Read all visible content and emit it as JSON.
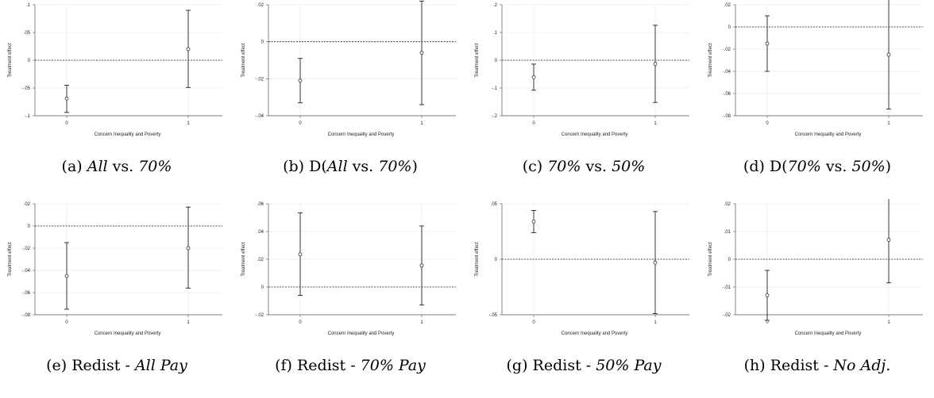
{
  "panels": [
    {
      "caption_parts": [
        {
          "text": "(a) "
        },
        {
          "text": "All",
          "italic": true
        },
        {
          "text": " vs. "
        },
        {
          "text": "70%",
          "italic": true
        }
      ],
      "chart_data": {
        "type": "scatter",
        "ylabel": "Treatment effect",
        "xlabel": "Concern Inequality and Poverty",
        "ylim": [
          -0.1,
          0.1
        ],
        "yticks": [
          -0.1,
          -0.05,
          0,
          0.05,
          0.1
        ],
        "ytick_labels": [
          "-.1",
          "-.05",
          "0",
          ".05",
          ".1"
        ],
        "xticks": [
          0,
          1
        ],
        "xtick_labels": [
          "0",
          "1"
        ],
        "points": [
          {
            "x": 0,
            "y": -0.069,
            "lo": -0.094,
            "hi": -0.045
          },
          {
            "x": 1,
            "y": 0.02,
            "lo": -0.049,
            "hi": 0.09
          }
        ]
      }
    },
    {
      "caption_parts": [
        {
          "text": "(b) D("
        },
        {
          "text": "All",
          "italic": true
        },
        {
          "text": " vs. "
        },
        {
          "text": "70%",
          "italic": true
        },
        {
          "text": ")"
        }
      ],
      "chart_data": {
        "type": "scatter",
        "ylabel": "Treatment effect",
        "xlabel": "Concern Inequality and Poverty",
        "ylim": [
          -0.04,
          0.02
        ],
        "yticks": [
          -0.04,
          -0.02,
          0,
          0.02
        ],
        "ytick_labels": [
          "-.04",
          "-.02",
          "0",
          ".02"
        ],
        "xticks": [
          0,
          1
        ],
        "xtick_labels": [
          "0",
          "1"
        ],
        "points": [
          {
            "x": 0,
            "y": -0.021,
            "lo": -0.033,
            "hi": -0.009
          },
          {
            "x": 1,
            "y": -0.006,
            "lo": -0.034,
            "hi": 0.022
          }
        ]
      }
    },
    {
      "caption_parts": [
        {
          "text": "(c) "
        },
        {
          "text": "70%",
          "italic": true
        },
        {
          "text": " vs. "
        },
        {
          "text": "50%",
          "italic": true
        }
      ],
      "chart_data": {
        "type": "scatter",
        "ylabel": "Treatment effect",
        "xlabel": "Concern Inequality and Poverty",
        "ylim": [
          -0.2,
          0.2
        ],
        "yticks": [
          -0.2,
          -0.1,
          0,
          0.1,
          0.2
        ],
        "ytick_labels": [
          "-.2",
          "-.1",
          "0",
          ".1",
          ".2"
        ],
        "xticks": [
          0,
          1
        ],
        "xtick_labels": [
          "0",
          "1"
        ],
        "points": [
          {
            "x": 0,
            "y": -0.061,
            "lo": -0.108,
            "hi": -0.014
          },
          {
            "x": 1,
            "y": -0.013,
            "lo": -0.152,
            "hi": 0.126
          }
        ]
      }
    },
    {
      "caption_parts": [
        {
          "text": "(d) D("
        },
        {
          "text": "70%",
          "italic": true
        },
        {
          "text": " vs. "
        },
        {
          "text": "50%",
          "italic": true
        },
        {
          "text": ")"
        }
      ],
      "chart_data": {
        "type": "scatter",
        "ylabel": "Treatment effect",
        "xlabel": "Concern Inequality and Poverty",
        "ylim": [
          -0.08,
          0.02
        ],
        "yticks": [
          -0.08,
          -0.06,
          -0.04,
          -0.02,
          0,
          0.02
        ],
        "ytick_labels": [
          "-.08",
          "-.06",
          "-.04",
          "-.02",
          "0",
          ".02"
        ],
        "xticks": [
          0,
          1
        ],
        "xtick_labels": [
          "0",
          "1"
        ],
        "points": [
          {
            "x": 0,
            "y": -0.015,
            "lo": -0.04,
            "hi": 0.01
          },
          {
            "x": 1,
            "y": -0.025,
            "lo": -0.074,
            "hi": 0.025
          }
        ]
      }
    },
    {
      "caption_parts": [
        {
          "text": "(e) Redist - "
        },
        {
          "text": "All Pay",
          "italic": true
        }
      ],
      "chart_data": {
        "type": "scatter",
        "ylabel": "Treatment effect",
        "xlabel": "Concern Inequality and Poverty",
        "ylim": [
          -0.08,
          0.02
        ],
        "yticks": [
          -0.08,
          -0.06,
          -0.04,
          -0.02,
          0,
          0.02
        ],
        "ytick_labels": [
          "-.08",
          "-.06",
          "-.04",
          "-.02",
          "0",
          ".02"
        ],
        "xticks": [
          0,
          1
        ],
        "xtick_labels": [
          "0",
          "1"
        ],
        "points": [
          {
            "x": 0,
            "y": -0.045,
            "lo": -0.075,
            "hi": -0.015
          },
          {
            "x": 1,
            "y": -0.02,
            "lo": -0.056,
            "hi": 0.017
          }
        ]
      }
    },
    {
      "caption_parts": [
        {
          "text": "(f) Redist - "
        },
        {
          "text": "70% Pay",
          "italic": true
        }
      ],
      "chart_data": {
        "type": "scatter",
        "ylabel": "Treatment effect",
        "xlabel": "Concern Inequality and Poverty",
        "ylim": [
          -0.02,
          0.06
        ],
        "yticks": [
          -0.02,
          0,
          0.02,
          0.04,
          0.06
        ],
        "ytick_labels": [
          "-.02",
          "0",
          ".02",
          ".04",
          ".06"
        ],
        "xticks": [
          0,
          1
        ],
        "xtick_labels": [
          "0",
          "1"
        ],
        "points": [
          {
            "x": 0,
            "y": 0.0235,
            "lo": -0.006,
            "hi": 0.0535
          },
          {
            "x": 1,
            "y": 0.0155,
            "lo": -0.013,
            "hi": 0.044
          }
        ]
      }
    },
    {
      "caption_parts": [
        {
          "text": "(g) Redist - "
        },
        {
          "text": "50% Pay",
          "italic": true
        }
      ],
      "chart_data": {
        "type": "scatter",
        "ylabel": "Treatment effect",
        "xlabel": "Concern Inequality and Poverty",
        "ylim": [
          -0.05,
          0.05
        ],
        "yticks": [
          -0.05,
          0,
          0.05
        ],
        "ytick_labels": [
          "-.05",
          "0",
          ".05"
        ],
        "xticks": [
          0,
          1
        ],
        "xtick_labels": [
          "0",
          "1"
        ],
        "points": [
          {
            "x": 0,
            "y": 0.034,
            "lo": 0.024,
            "hi": 0.044
          },
          {
            "x": 1,
            "y": -0.003,
            "lo": -0.049,
            "hi": 0.043
          }
        ]
      }
    },
    {
      "caption_parts": [
        {
          "text": "(h) Redist - "
        },
        {
          "text": "No Adj.",
          "italic": true
        }
      ],
      "chart_data": {
        "type": "scatter",
        "ylabel": "Treatment effect",
        "xlabel": "Concern Inequality and Poverty",
        "ylim": [
          -0.02,
          0.02
        ],
        "yticks": [
          -0.02,
          -0.01,
          0,
          0.01,
          0.02
        ],
        "ytick_labels": [
          "-.02",
          "-.01",
          "0",
          ".01",
          ".02"
        ],
        "xticks": [
          0,
          1
        ],
        "xtick_labels": [
          "0",
          "1"
        ],
        "points": [
          {
            "x": 0,
            "y": -0.013,
            "lo": -0.022,
            "hi": -0.004
          },
          {
            "x": 1,
            "y": 0.007,
            "lo": -0.0085,
            "hi": 0.0225
          }
        ]
      }
    }
  ],
  "colors": {
    "marker": "#333333",
    "errorbar": "#222222",
    "grid": "#e6e6e6",
    "zero_line": "#222222",
    "axis": "#555555"
  }
}
